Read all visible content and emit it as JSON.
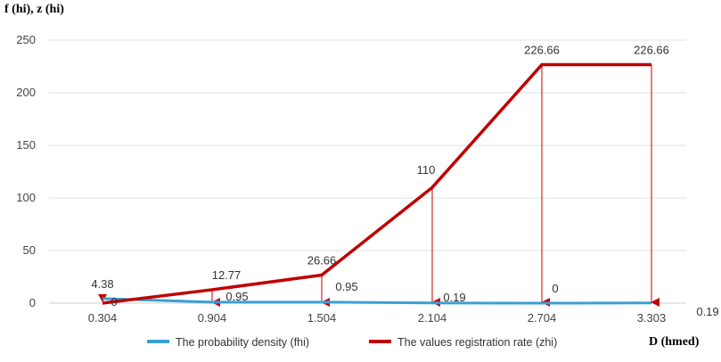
{
  "chart_data": {
    "type": "line",
    "title": "",
    "ylabel": "f (hi), z (hi)",
    "xlabel": "D (hmed)",
    "ylim": [
      0,
      250
    ],
    "yticks": [
      "0",
      "50",
      "100",
      "150",
      "200",
      "250"
    ],
    "categories": [
      "0.304",
      "0.904",
      "1.504",
      "2.104",
      "2.704",
      "3.303"
    ],
    "grid": true,
    "legend_position": "bottom",
    "series": [
      {
        "name": "The probability density (fhi)",
        "color": "#3a9fd6",
        "values": [
          4.38,
          0.95,
          0.95,
          0.19,
          0,
          0.19
        ],
        "labels": [
          "4.38",
          "0.95",
          "0.95",
          "0.19",
          "0",
          "0.19"
        ]
      },
      {
        "name": "The values registration rate (zhi)",
        "color": "#c00000",
        "values": [
          0,
          12.77,
          26.66,
          110,
          226.66,
          226.66
        ],
        "labels": [
          "0",
          "12.77",
          "26.66",
          "110",
          "226.66",
          "226.66"
        ]
      }
    ],
    "drop_lines": {
      "series": 1,
      "color": "#c00000",
      "marker": "arrow-down"
    }
  }
}
